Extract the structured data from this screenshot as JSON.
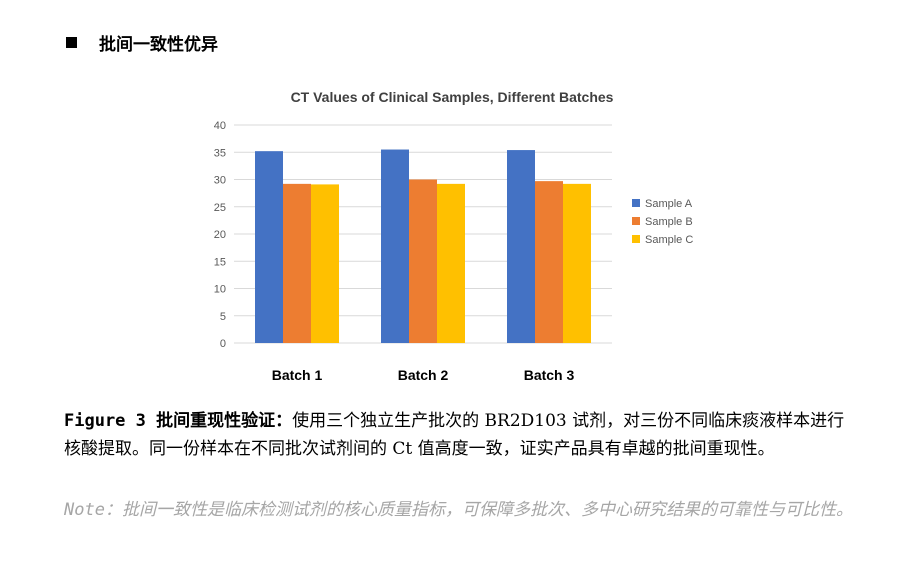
{
  "section": {
    "bullet_icon": "black-square-icon",
    "title": "批间一致性优异"
  },
  "chart_data": {
    "type": "bar",
    "title": "CT Values of Clinical Samples, Different Batches",
    "categories": [
      "Batch 1",
      "Batch 2",
      "Batch 3"
    ],
    "series": [
      {
        "name": "Sample A",
        "color": "#4472C4",
        "values": [
          35.2,
          35.5,
          35.4
        ]
      },
      {
        "name": "Sample B",
        "color": "#ED7D31",
        "values": [
          29.2,
          30.0,
          29.7
        ]
      },
      {
        "name": "Sample C",
        "color": "#FFC000",
        "values": [
          29.1,
          29.2,
          29.2
        ]
      }
    ],
    "ylim": [
      0,
      40
    ],
    "yticks": [
      0,
      5,
      10,
      15,
      20,
      25,
      30,
      35,
      40
    ],
    "grid": true,
    "legend": "right"
  },
  "caption": {
    "label": "Figure 3 批间重现性验证：",
    "text": "使用三个独立生产批次的 BR2D103 试剂，对三份不同临床痰液样本进行核酸提取。同一份样本在不同批次试剂间的 Ct 值高度一致，证实产品具有卓越的批间重现性。"
  },
  "note": {
    "label": "Note：",
    "text": "批间一致性是临床检测试剂的核心质量指标，可保障多批次、多中心研究结果的可靠性与可比性。"
  }
}
